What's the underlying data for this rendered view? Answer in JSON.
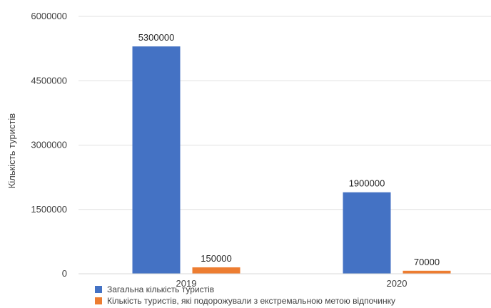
{
  "chart_data": {
    "type": "bar",
    "categories": [
      "2019",
      "2020"
    ],
    "series": [
      {
        "name": "Загальна кількість туристів",
        "values": [
          5300000,
          1900000
        ],
        "color": "#4472C4"
      },
      {
        "name": "Кількість туристів, які подорожували з екстремальною метою відпочинку",
        "values": [
          150000,
          70000
        ],
        "color": "#ED7D31"
      }
    ],
    "data_labels": [
      [
        "5300000",
        "1900000"
      ],
      [
        "150000",
        "70000"
      ]
    ],
    "title": "",
    "xlabel": "",
    "ylabel": "Кількість туристів",
    "ylim": [
      0,
      6000000
    ],
    "yticks": [
      0,
      1500000,
      3000000,
      4500000,
      6000000
    ],
    "ytick_labels": [
      "0",
      "1500000",
      "3000000",
      "4500000",
      "6000000"
    ],
    "grid": true,
    "legend_position": "bottom-left"
  }
}
